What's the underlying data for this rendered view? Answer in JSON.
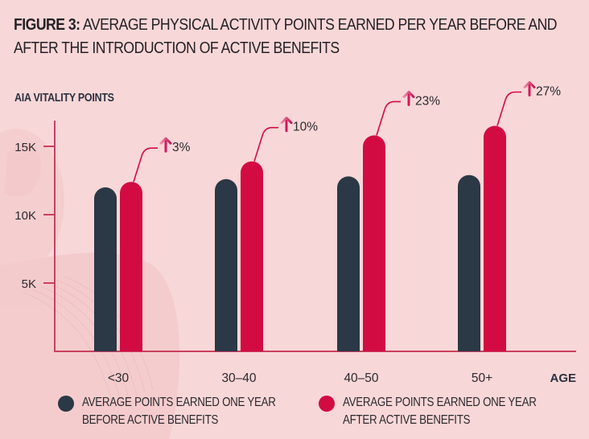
{
  "figure": {
    "label": "FIGURE 3:",
    "title_text": "AVERAGE PHYSICAL ACTIVITY POINTS EARNED PER YEAR BEFORE AND AFTER THE INTRODUCTION OF ACTIVE BENEFITS"
  },
  "colors": {
    "background": "#f8d7d8",
    "before": "#2b3846",
    "after": "#d20c43",
    "axis": "#c9415f",
    "arrow_light": "#f08ba3",
    "arrow_dark": "#c2185b"
  },
  "chart_data": {
    "type": "bar",
    "title": "FIGURE 3: AVERAGE PHYSICAL ACTIVITY POINTS EARNED PER YEAR BEFORE AND AFTER THE INTRODUCTION OF ACTIVE BENEFITS",
    "ylabel": "AIA VITALITY POINTS",
    "xlabel": "AGE",
    "categories": [
      "<30",
      "30–40",
      "40–50",
      "50+"
    ],
    "series": [
      {
        "name": "AVERAGE POINTS EARNED ONE YEAR BEFORE ACTIVE BENEFITS",
        "values": [
          12000,
          12600,
          12800,
          12900
        ]
      },
      {
        "name": "AVERAGE POINTS EARNED ONE YEAR AFTER ACTIVE BENEFITS",
        "values": [
          12400,
          13900,
          15800,
          16500
        ]
      }
    ],
    "annotations": [
      "3%",
      "10%",
      "23%",
      "27%"
    ],
    "yticks": [
      5000,
      10000,
      15000
    ],
    "ytick_labels": [
      "5K",
      "10K",
      "15K"
    ],
    "ylim": [
      0,
      17000
    ],
    "grid": false,
    "legend_position": "bottom"
  },
  "legend": [
    {
      "line1": "AVERAGE POINTS EARNED ONE YEAR",
      "line2": "BEFORE ACTIVE BENEFITS"
    },
    {
      "line1": "AVERAGE POINTS EARNED ONE YEAR",
      "line2": "AFTER ACTIVE BENEFITS"
    }
  ]
}
